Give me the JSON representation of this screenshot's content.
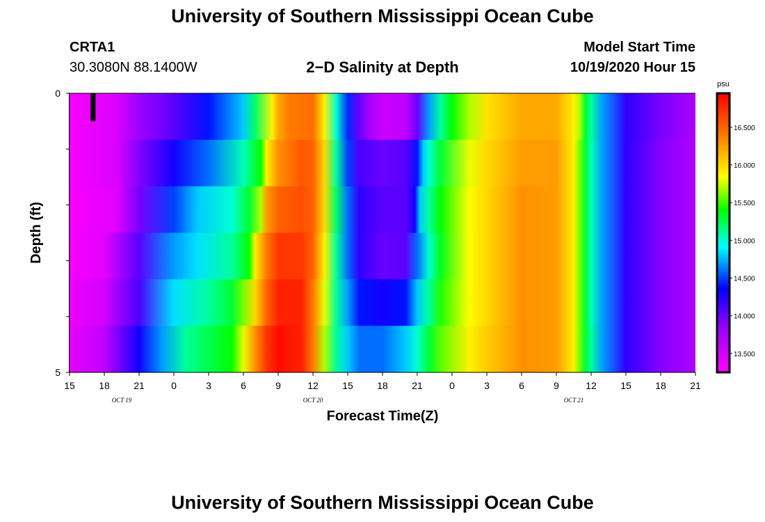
{
  "page_title_top": "University of Southern Mississippi Ocean Cube",
  "page_title_bottom": "University of Southern Mississippi Ocean Cube",
  "station": {
    "id": "CRTA1",
    "coords": "30.3080N 88.1400W"
  },
  "model": {
    "label": "Model Start Time",
    "start": "10/19/2020 Hour 15"
  },
  "chart_data": {
    "type": "heatmap",
    "title": "2−D Salinity at Depth",
    "xlabel": "Forecast Time(Z)",
    "ylabel": "Depth (ft)",
    "x_tick_labels": [
      "15",
      "18",
      "21",
      "0",
      "3",
      "6",
      "9",
      "12",
      "15",
      "18",
      "21",
      "0",
      "3",
      "6",
      "9",
      "12",
      "15",
      "18",
      "21"
    ],
    "x_hours": [
      0,
      3,
      6,
      9,
      12,
      15,
      18,
      21,
      24,
      27,
      30,
      33,
      36,
      39,
      42,
      45,
      48,
      51,
      54
    ],
    "date_labels": [
      {
        "text": "OCT 19",
        "hour": 4.5
      },
      {
        "text": "OCT 20",
        "hour": 21
      },
      {
        "text": "OCT 21",
        "hour": 43.5
      }
    ],
    "y_tick_labels": [
      "0",
      "5"
    ],
    "ylim": [
      0,
      5
    ],
    "depths": [
      0,
      1,
      2,
      3,
      4,
      5
    ],
    "colorbar": {
      "unit": "psu",
      "ticks": [
        "13.500",
        "14.000",
        "14.500",
        "15.000",
        "15.500",
        "16.000",
        "16.500"
      ],
      "range": [
        13.25,
        16.95
      ]
    },
    "salinity_rows": [
      {
        "depth": 0,
        "hours": [
          0,
          4,
          6,
          9,
          12,
          15,
          16,
          17.5,
          18,
          19,
          21,
          22,
          23,
          24,
          25,
          26,
          27,
          29,
          30,
          31,
          32,
          33,
          34.5,
          36,
          39,
          42,
          43.5,
          44,
          44.5,
          45,
          46,
          48,
          51,
          54
        ],
        "values": [
          13.3,
          13.45,
          13.8,
          14.05,
          14.4,
          14.8,
          15.2,
          15.9,
          16.2,
          16.4,
          16.45,
          15.9,
          15.0,
          14.45,
          14.0,
          13.7,
          13.55,
          13.6,
          14.0,
          14.7,
          15.1,
          15.4,
          15.7,
          15.95,
          16.2,
          16.2,
          15.9,
          15.7,
          15.3,
          15.1,
          14.7,
          14.2,
          13.95,
          13.7
        ]
      },
      {
        "depth": 1,
        "hours": [
          0,
          4,
          6,
          9,
          12,
          15,
          16.5,
          17,
          18,
          20,
          21,
          22,
          23,
          24,
          25,
          27,
          29,
          30,
          30.5,
          31,
          32,
          34.5,
          36,
          39,
          42,
          43.5,
          44,
          44.5,
          45,
          46,
          48,
          51,
          54
        ],
        "values": [
          13.3,
          13.45,
          13.9,
          14.3,
          14.6,
          15.05,
          15.4,
          15.9,
          16.3,
          16.55,
          16.5,
          16.0,
          15.1,
          14.5,
          14.1,
          14.0,
          14.05,
          14.4,
          14.8,
          15.0,
          15.3,
          15.8,
          16.0,
          16.25,
          16.25,
          15.9,
          15.6,
          15.3,
          15.05,
          14.7,
          14.2,
          13.9,
          13.7
        ]
      },
      {
        "depth": 2,
        "hours": [
          0,
          4,
          6,
          9,
          11,
          14,
          15.5,
          16.5,
          17,
          18,
          20,
          21,
          22,
          23,
          24,
          25,
          27,
          29,
          29.8,
          30.2,
          31,
          32,
          34.5,
          36,
          39,
          42,
          43.5,
          44,
          44.5,
          45,
          46,
          48,
          51,
          54
        ],
        "values": [
          13.3,
          13.4,
          13.95,
          14.5,
          14.8,
          15.0,
          15.3,
          15.7,
          16.25,
          16.5,
          16.6,
          16.5,
          16.0,
          15.2,
          14.6,
          14.2,
          14.05,
          14.05,
          14.3,
          14.8,
          15.1,
          15.4,
          15.85,
          16.0,
          16.3,
          16.25,
          15.9,
          15.6,
          15.3,
          15.05,
          14.7,
          14.2,
          13.9,
          13.7
        ]
      },
      {
        "depth": 3,
        "hours": [
          0,
          3,
          6,
          9,
          11,
          14,
          15.5,
          16,
          17,
          18,
          20,
          21,
          22,
          23,
          24,
          25,
          27,
          29,
          30,
          31,
          32,
          34.5,
          36,
          39,
          42,
          43.5,
          44,
          44.5,
          45,
          46,
          48,
          51,
          54
        ],
        "values": [
          13.3,
          13.4,
          14.05,
          14.7,
          14.85,
          15.1,
          15.4,
          15.9,
          16.4,
          16.7,
          16.7,
          16.5,
          15.9,
          15.1,
          14.6,
          14.2,
          14.0,
          14.05,
          14.6,
          15.0,
          15.35,
          15.85,
          16.0,
          16.3,
          16.25,
          15.9,
          15.6,
          15.3,
          15.05,
          14.7,
          14.2,
          13.9,
          13.7
        ]
      },
      {
        "depth": 4,
        "hours": [
          0,
          3,
          6,
          9,
          12,
          14,
          15,
          16,
          17,
          18,
          20,
          21,
          22,
          23,
          24,
          25,
          27,
          29,
          30,
          31,
          32,
          34.5,
          36,
          39,
          42,
          43.5,
          44,
          44.5,
          45,
          46,
          48,
          51,
          54
        ],
        "values": [
          13.35,
          13.5,
          14.1,
          14.85,
          15.1,
          15.3,
          15.6,
          16.0,
          16.5,
          16.8,
          16.8,
          16.4,
          15.8,
          15.1,
          14.7,
          14.4,
          14.3,
          14.4,
          14.8,
          15.1,
          15.45,
          15.85,
          16.0,
          16.3,
          16.25,
          15.9,
          15.6,
          15.3,
          15.05,
          14.7,
          14.2,
          13.9,
          13.7
        ]
      },
      {
        "depth": 5,
        "hours": [
          0,
          3,
          6,
          8,
          10,
          12,
          14,
          15,
          16,
          17,
          18,
          20,
          21,
          22,
          23,
          24,
          25,
          27,
          29,
          30,
          31,
          32,
          34.5,
          36,
          39,
          42,
          43.5,
          44,
          44.5,
          45,
          46,
          48,
          51,
          54
        ],
        "values": [
          13.4,
          13.6,
          14.3,
          14.7,
          15.1,
          15.25,
          15.4,
          15.8,
          16.3,
          16.7,
          16.9,
          16.8,
          16.4,
          15.7,
          15.1,
          14.8,
          14.6,
          14.6,
          14.8,
          15.0,
          15.3,
          15.55,
          15.9,
          16.05,
          16.3,
          16.25,
          15.9,
          15.6,
          15.3,
          15.1,
          14.7,
          14.2,
          13.9,
          13.7
        ]
      }
    ],
    "initial_marker": {
      "hour": 2,
      "depth_from": 0,
      "depth_to": 0.5
    }
  },
  "colors": {
    "axis": "#000000",
    "marker": "#000000"
  }
}
